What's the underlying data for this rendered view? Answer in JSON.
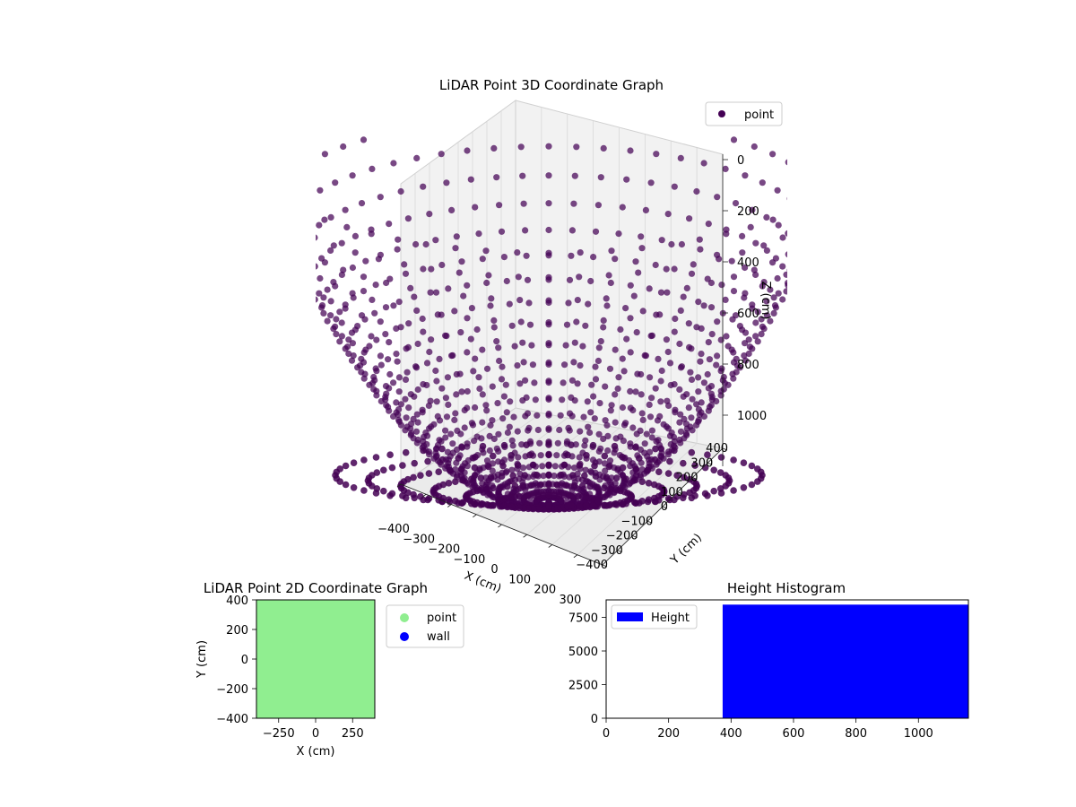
{
  "chart_data": [
    {
      "type": "scatter3d",
      "title": "LiDAR Point 3D Coordinate Graph",
      "xlabel": "X (cm)",
      "ylabel": "Y (cm)",
      "zlabel": "Z (cm)",
      "x_ticks": [
        "−400",
        "−300",
        "−200",
        "−100",
        "0",
        "100",
        "200",
        "300"
      ],
      "y_ticks": [
        "−400",
        "−300",
        "−200",
        "−100",
        "0",
        "100",
        "200",
        "300",
        "400"
      ],
      "z_ticks": [
        "0",
        "200",
        "400",
        "600",
        "800",
        "1000"
      ],
      "xlim": [
        -400,
        400
      ],
      "ylim": [
        -400,
        400
      ],
      "zlim": [
        0,
        1100
      ],
      "z_axis_inverted": true,
      "legend": [
        "point"
      ],
      "legend_position": "top-right",
      "series": [
        {
          "name": "point",
          "color": "#440154",
          "shape": "bowl",
          "ray_count": 60,
          "rim_radius": 400,
          "depth_range": [
            0,
            1160
          ]
        }
      ],
      "grid": true
    },
    {
      "type": "scatter",
      "title": "LiDAR Point 2D Coordinate Graph",
      "xlabel": "X (cm)",
      "ylabel": "Y (cm)",
      "x_ticks": [
        "−250",
        "0",
        "250"
      ],
      "y_ticks": [
        "400",
        "200",
        "0",
        "−200",
        "−400"
      ],
      "xlim": [
        -400,
        400
      ],
      "ylim": [
        -400,
        400
      ],
      "legend": [
        "point",
        "wall"
      ],
      "legend_position": "outside-right",
      "series": [
        {
          "name": "point",
          "color": "#90ee90",
          "coverage": "dense, fills the whole area"
        },
        {
          "name": "wall",
          "color": "#0000ff",
          "coverage": "not visible"
        }
      ],
      "grid": false
    },
    {
      "type": "bar",
      "title": "Height Histogram",
      "xlabel": "",
      "ylabel": "",
      "x_ticks": [
        "0",
        "200",
        "400",
        "600",
        "800",
        "1000"
      ],
      "y_ticks": [
        "0",
        "2500",
        "5000",
        "7500"
      ],
      "xlim": [
        0,
        1160
      ],
      "ylim": [
        0,
        8800
      ],
      "legend": [
        "Height"
      ],
      "legend_position": "upper-left",
      "series": [
        {
          "name": "Height",
          "color": "#0000ff",
          "bins": [
            {
              "from": 373,
              "to": 1160,
              "count": 8450
            }
          ]
        }
      ],
      "grid": false
    }
  ]
}
